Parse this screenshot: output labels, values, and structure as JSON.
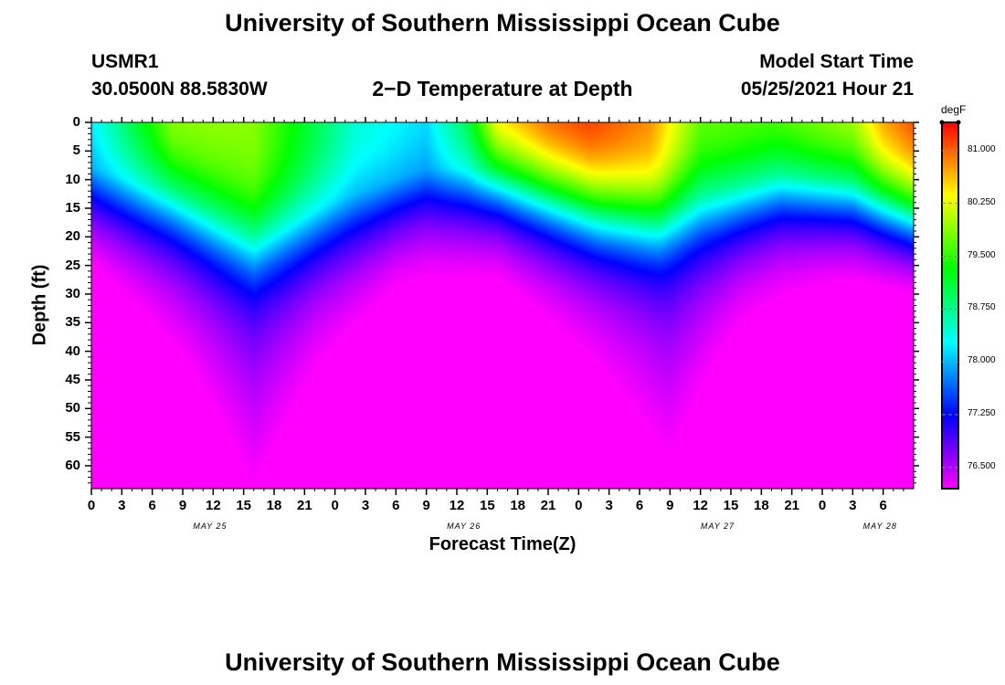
{
  "header": {
    "title_top": "University of Southern Mississippi Ocean Cube",
    "station": "USMR1",
    "coords": "30.0500N  88.5830W",
    "plot_title": "2−D Temperature at Depth",
    "model_label": "Model Start Time",
    "model_time": "05/25/2021 Hour 21",
    "title_bottom": "University of Southern Mississippi Ocean Cube"
  },
  "chart_data": {
    "type": "heatmap",
    "title": "2−D Temperature at Depth",
    "xlabel": "Forecast Time(Z)",
    "ylabel": "Depth (ft)",
    "colorbar_label": "degF",
    "colorbar_ticks": [
      "81.000",
      "80.250",
      "79.500",
      "78.750",
      "78.000",
      "77.250",
      "76.500"
    ],
    "colorbar_values": [
      81.0,
      80.25,
      79.5,
      78.75,
      78.0,
      77.25,
      76.5
    ],
    "colorbar_range": [
      76.2,
      81.4
    ],
    "ylim": [
      0,
      64
    ],
    "y_ticks": [
      "0",
      "5",
      "10",
      "15",
      "20",
      "25",
      "30",
      "35",
      "40",
      "45",
      "50",
      "55",
      "60"
    ],
    "xlim_hours": [
      0,
      81
    ],
    "x_ticks": [
      "0",
      "3",
      "6",
      "9",
      "12",
      "15",
      "18",
      "21",
      "0",
      "3",
      "6",
      "9",
      "12",
      "15",
      "18",
      "21",
      "0",
      "3",
      "6",
      "9",
      "12",
      "15",
      "18",
      "21",
      "0",
      "3",
      "6"
    ],
    "day_labels": [
      {
        "label": "MAY 25",
        "hour": 12
      },
      {
        "label": "MAY 26",
        "hour": 37
      },
      {
        "label": "MAY 27",
        "hour": 62
      },
      {
        "label": "MAY 28",
        "hour": 78
      }
    ],
    "surface_temp_degF": {
      "hours": [
        0,
        8,
        16,
        26,
        33,
        37,
        40,
        45,
        49,
        55,
        60,
        67,
        75,
        78,
        81
      ],
      "values": [
        78.3,
        80.0,
        79.9,
        78.5,
        78.2,
        79.2,
        80.8,
        81.2,
        81.3,
        80.9,
        79.8,
        79.8,
        80.2,
        80.9,
        81.2
      ]
    },
    "mixed_layer_depth_ft": {
      "hours": [
        0,
        8,
        16,
        25,
        33,
        40,
        50,
        56,
        60,
        68,
        75,
        81
      ],
      "values": [
        8,
        12,
        20,
        13,
        8,
        8,
        14,
        16,
        13,
        9,
        10,
        14
      ]
    },
    "deep_temp_degF": {
      "hours": [
        0,
        10,
        16,
        22,
        30,
        40,
        50,
        57,
        64,
        72,
        81
      ],
      "values": [
        76.2,
        76.6,
        76.9,
        76.6,
        76.35,
        76.3,
        76.6,
        76.85,
        76.45,
        76.3,
        76.2
      ]
    },
    "deep_decay_ft": {
      "hours": [
        0,
        10,
        16,
        22,
        30,
        40,
        50,
        57,
        64,
        72,
        81
      ],
      "values": [
        9,
        13,
        17,
        12,
        9,
        9,
        12,
        15,
        11,
        9,
        8
      ]
    }
  }
}
